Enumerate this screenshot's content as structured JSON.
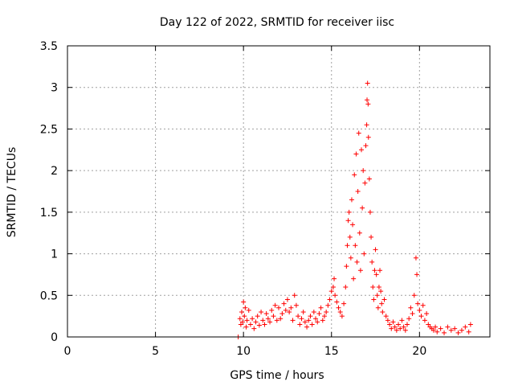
{
  "chart_data": {
    "type": "scatter",
    "title": "Day 122 of 2022, SRMTID for receiver iisc",
    "xlabel": "GPS time / hours",
    "ylabel": "SRMTID / TECUs",
    "xlim": [
      0,
      24
    ],
    "ylim": [
      0,
      3.5
    ],
    "xticks": [
      "0",
      "5",
      "10",
      "15",
      "20"
    ],
    "yticks": [
      "0",
      "0.5",
      "1",
      "1.5",
      "2",
      "2.5",
      "3",
      "3.5"
    ],
    "grid": true,
    "marker": "+",
    "series": [
      {
        "name": "SRMTID",
        "color": "#ff0000",
        "points": [
          [
            9.7,
            0.0
          ],
          [
            9.8,
            0.22
          ],
          [
            9.85,
            0.15
          ],
          [
            9.9,
            0.3
          ],
          [
            9.95,
            0.18
          ],
          [
            10.0,
            0.42
          ],
          [
            10.05,
            0.25
          ],
          [
            10.1,
            0.35
          ],
          [
            10.15,
            0.12
          ],
          [
            10.2,
            0.2
          ],
          [
            10.3,
            0.32
          ],
          [
            10.4,
            0.15
          ],
          [
            10.5,
            0.22
          ],
          [
            10.6,
            0.1
          ],
          [
            10.7,
            0.18
          ],
          [
            10.8,
            0.25
          ],
          [
            10.9,
            0.14
          ],
          [
            11.0,
            0.3
          ],
          [
            11.1,
            0.2
          ],
          [
            11.2,
            0.15
          ],
          [
            11.3,
            0.28
          ],
          [
            11.4,
            0.22
          ],
          [
            11.5,
            0.18
          ],
          [
            11.6,
            0.32
          ],
          [
            11.7,
            0.25
          ],
          [
            11.8,
            0.38
          ],
          [
            11.9,
            0.2
          ],
          [
            12.0,
            0.35
          ],
          [
            12.1,
            0.22
          ],
          [
            12.2,
            0.28
          ],
          [
            12.3,
            0.4
          ],
          [
            12.4,
            0.32
          ],
          [
            12.5,
            0.45
          ],
          [
            12.6,
            0.3
          ],
          [
            12.7,
            0.35
          ],
          [
            12.8,
            0.2
          ],
          [
            12.9,
            0.5
          ],
          [
            13.0,
            0.38
          ],
          [
            13.1,
            0.25
          ],
          [
            13.2,
            0.15
          ],
          [
            13.3,
            0.22
          ],
          [
            13.4,
            0.3
          ],
          [
            13.5,
            0.18
          ],
          [
            13.6,
            0.12
          ],
          [
            13.7,
            0.2
          ],
          [
            13.8,
            0.25
          ],
          [
            13.9,
            0.15
          ],
          [
            14.0,
            0.3
          ],
          [
            14.1,
            0.22
          ],
          [
            14.2,
            0.18
          ],
          [
            14.3,
            0.28
          ],
          [
            14.4,
            0.35
          ],
          [
            14.5,
            0.2
          ],
          [
            14.6,
            0.25
          ],
          [
            14.7,
            0.3
          ],
          [
            14.8,
            0.38
          ],
          [
            14.9,
            0.45
          ],
          [
            15.0,
            0.55
          ],
          [
            15.1,
            0.6
          ],
          [
            15.15,
            0.7
          ],
          [
            15.2,
            0.5
          ],
          [
            15.3,
            0.42
          ],
          [
            15.4,
            0.35
          ],
          [
            15.5,
            0.3
          ],
          [
            15.6,
            0.25
          ],
          [
            15.7,
            0.4
          ],
          [
            15.8,
            0.6
          ],
          [
            15.85,
            0.85
          ],
          [
            15.9,
            1.1
          ],
          [
            15.95,
            1.4
          ],
          [
            16.0,
            1.5
          ],
          [
            16.05,
            1.2
          ],
          [
            16.1,
            0.95
          ],
          [
            16.15,
            1.65
          ],
          [
            16.2,
            1.35
          ],
          [
            16.25,
            0.7
          ],
          [
            16.3,
            1.95
          ],
          [
            16.35,
            1.1
          ],
          [
            16.4,
            2.2
          ],
          [
            16.45,
            0.9
          ],
          [
            16.5,
            1.75
          ],
          [
            16.55,
            2.45
          ],
          [
            16.6,
            1.25
          ],
          [
            16.65,
            0.8
          ],
          [
            16.7,
            2.25
          ],
          [
            16.75,
            1.55
          ],
          [
            16.8,
            2.0
          ],
          [
            16.85,
            1.0
          ],
          [
            16.9,
            1.85
          ],
          [
            16.95,
            2.3
          ],
          [
            17.0,
            2.55
          ],
          [
            17.02,
            2.85
          ],
          [
            17.05,
            3.05
          ],
          [
            17.08,
            2.8
          ],
          [
            17.1,
            2.4
          ],
          [
            17.15,
            1.9
          ],
          [
            17.2,
            1.5
          ],
          [
            17.25,
            1.2
          ],
          [
            17.3,
            0.9
          ],
          [
            17.35,
            0.6
          ],
          [
            17.4,
            0.45
          ],
          [
            17.45,
            0.8
          ],
          [
            17.5,
            1.05
          ],
          [
            17.55,
            0.75
          ],
          [
            17.6,
            0.5
          ],
          [
            17.65,
            0.35
          ],
          [
            17.7,
            0.6
          ],
          [
            17.75,
            0.8
          ],
          [
            17.8,
            0.55
          ],
          [
            17.85,
            0.4
          ],
          [
            17.9,
            0.3
          ],
          [
            18.0,
            0.45
          ],
          [
            18.1,
            0.25
          ],
          [
            18.2,
            0.2
          ],
          [
            18.3,
            0.15
          ],
          [
            18.4,
            0.1
          ],
          [
            18.5,
            0.18
          ],
          [
            18.6,
            0.12
          ],
          [
            18.7,
            0.08
          ],
          [
            18.8,
            0.15
          ],
          [
            18.9,
            0.1
          ],
          [
            19.0,
            0.2
          ],
          [
            19.1,
            0.12
          ],
          [
            19.2,
            0.08
          ],
          [
            19.3,
            0.15
          ],
          [
            19.4,
            0.22
          ],
          [
            19.5,
            0.35
          ],
          [
            19.6,
            0.28
          ],
          [
            19.7,
            0.5
          ],
          [
            19.8,
            0.95
          ],
          [
            19.85,
            0.75
          ],
          [
            19.9,
            0.4
          ],
          [
            20.0,
            0.32
          ],
          [
            20.1,
            0.25
          ],
          [
            20.2,
            0.38
          ],
          [
            20.3,
            0.2
          ],
          [
            20.4,
            0.28
          ],
          [
            20.5,
            0.15
          ],
          [
            20.6,
            0.12
          ],
          [
            20.7,
            0.1
          ],
          [
            20.8,
            0.08
          ],
          [
            20.9,
            0.12
          ],
          [
            21.0,
            0.06
          ],
          [
            21.2,
            0.1
          ],
          [
            21.4,
            0.05
          ],
          [
            21.6,
            0.12
          ],
          [
            21.8,
            0.08
          ],
          [
            22.0,
            0.1
          ],
          [
            22.2,
            0.05
          ],
          [
            22.4,
            0.08
          ],
          [
            22.6,
            0.12
          ],
          [
            22.8,
            0.06
          ],
          [
            22.9,
            0.15
          ]
        ]
      }
    ]
  }
}
